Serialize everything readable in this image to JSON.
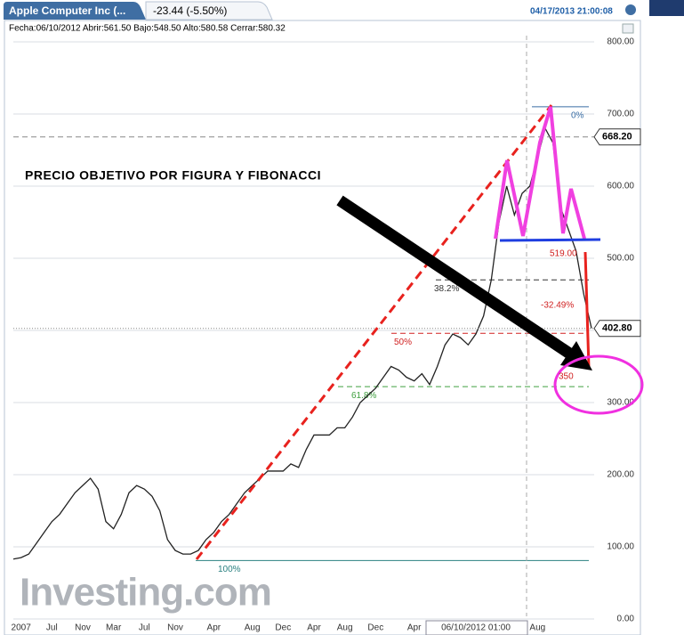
{
  "header": {
    "instrument": "Apple Computer Inc (...",
    "change": "-23.44 (-5.50%)",
    "timestamp": "04/17/2013 21:00:08",
    "info": "Fecha:06/10/2012 Abrir:561.50 Bajo:548.50 Alto:580.58 Cerrar:580.32"
  },
  "chart_data": {
    "type": "line",
    "title": "PRECIO OBJETIVO POR FIGURA Y FIBONACCI",
    "watermark": "Investing.com",
    "categories": [
      null,
      "2007",
      null,
      null,
      null,
      "Jul",
      null,
      null,
      null,
      "Nov",
      null,
      null,
      null,
      "Mar",
      null,
      null,
      null,
      "Jul",
      null,
      null,
      null,
      "Nov",
      null,
      null,
      null,
      null,
      "Apr",
      null,
      null,
      null,
      null,
      "Aug",
      null,
      null,
      null,
      "Dec",
      null,
      null,
      null,
      "Apr",
      null,
      null,
      null,
      "Aug",
      null,
      null,
      null,
      "Dec",
      null,
      null,
      null,
      null,
      "Apr",
      null,
      null,
      null,
      null,
      null,
      null,
      null,
      "06/10/2012 01:00",
      null,
      null,
      null,
      null,
      null,
      null,
      null,
      "Aug",
      null,
      null,
      null,
      null,
      null,
      null,
      null
    ],
    "series": [
      {
        "color": "#222222",
        "values": [
          83,
          85,
          90,
          105,
          120,
          135,
          145,
          160,
          175,
          185,
          195,
          180,
          135,
          125,
          145,
          175,
          185,
          180,
          170,
          150,
          110,
          95,
          90,
          90,
          95,
          110,
          120,
          135,
          145,
          160,
          175,
          185,
          195,
          205,
          205,
          205,
          215,
          210,
          235,
          255,
          255,
          255,
          265,
          265,
          280,
          300,
          310,
          320,
          335,
          350,
          345,
          335,
          330,
          340,
          325,
          350,
          380,
          395,
          390,
          380,
          395,
          420,
          470,
          550,
          600,
          560,
          590,
          600,
          640,
          680,
          660,
          570,
          540,
          510,
          450,
          403
        ]
      }
    ],
    "ylim": [
      0,
      800
    ],
    "yticks": [
      {
        "value": 0,
        "label": "0.00"
      },
      {
        "value": 100,
        "label": "100.00"
      },
      {
        "value": 200,
        "label": "200.00"
      },
      {
        "value": 300,
        "label": "300.00"
      },
      {
        "value": 400,
        "label": "400.00"
      },
      {
        "value": 500,
        "label": "500.00"
      },
      {
        "value": 600,
        "label": "600.00"
      },
      {
        "value": 700,
        "label": "700.00"
      },
      {
        "value": 800,
        "label": "800.00"
      }
    ],
    "grid": true,
    "price_tags": [
      {
        "value": 668.2,
        "label": "668.20"
      },
      {
        "value": 402.8,
        "label": "402.80"
      }
    ],
    "fib_levels": [
      {
        "value": 710,
        "label": "0%",
        "color": "#3a6ea5"
      },
      {
        "value": 470,
        "label": "38.2%",
        "color": "#333333"
      },
      {
        "value": 396,
        "label": "50%",
        "color": "#d02020"
      },
      {
        "value": 322,
        "label": "61.8%",
        "color": "#40a040"
      },
      {
        "value": 81,
        "label": "100%",
        "color": "#2a8080"
      }
    ],
    "annotations": [
      "519.00",
      "-32.49%",
      "350"
    ]
  }
}
